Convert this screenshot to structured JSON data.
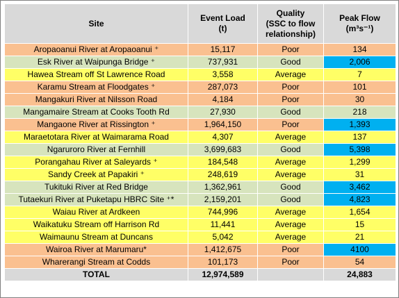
{
  "headers": {
    "site": "Site",
    "event_load": "Event Load",
    "event_load_unit": "(t)",
    "quality_line1": "Quality",
    "quality_line2": "(SSC to flow",
    "quality_line3": "relationship)",
    "peak_flow": "Peak Flow",
    "peak_flow_unit": "(m³s⁻¹)"
  },
  "rows": [
    {
      "site": "Aropaoanui River at Aropaoanui ⁺",
      "load": "15,117",
      "quality": "Poor",
      "peak": "134",
      "color": "orange",
      "peak_highlight": false
    },
    {
      "site": "Esk River at Waipunga Bridge ⁺",
      "load": "737,931",
      "quality": "Good",
      "peak": "2,006",
      "color": "green",
      "peak_highlight": true
    },
    {
      "site": "Hawea Stream off St Lawrence Road",
      "load": "3,558",
      "quality": "Average",
      "peak": "7",
      "color": "yellow",
      "peak_highlight": false
    },
    {
      "site": "Karamu Stream at Floodgates ⁺",
      "load": "287,073",
      "quality": "Poor",
      "peak": "101",
      "color": "orange",
      "peak_highlight": false
    },
    {
      "site": "Mangakuri River at Nilsson Road",
      "load": "4,184",
      "quality": "Poor",
      "peak": "30",
      "color": "orange",
      "peak_highlight": false
    },
    {
      "site": "Mangamaire Stream at Cooks Tooth Rd",
      "load": "27,930",
      "quality": "Good",
      "peak": "218",
      "color": "green",
      "peak_highlight": false
    },
    {
      "site": "Mangaone River at Rissington ⁺",
      "load": "1,964,150",
      "quality": "Poor",
      "peak": "1,393",
      "color": "orange",
      "peak_highlight": true
    },
    {
      "site": "Maraetotara River at Waimarama Road",
      "load": "4,307",
      "quality": "Average",
      "peak": "137",
      "color": "yellow",
      "peak_highlight": false
    },
    {
      "site": "Ngaruroro River at Fernhill",
      "load": "3,699,683",
      "quality": "Good",
      "peak": "5,398",
      "color": "green",
      "peak_highlight": true
    },
    {
      "site": "Porangahau River at Saleyards ⁺",
      "load": "184,548",
      "quality": "Average",
      "peak": "1,299",
      "color": "yellow",
      "peak_highlight": false
    },
    {
      "site": "Sandy Creek at Papakiri ⁺",
      "load": "248,619",
      "quality": "Average",
      "peak": "31",
      "color": "yellow",
      "peak_highlight": false
    },
    {
      "site": "Tukituki River at Red Bridge",
      "load": "1,362,961",
      "quality": "Good",
      "peak": "3,462",
      "color": "green",
      "peak_highlight": true
    },
    {
      "site": "Tutaekuri River at Puketapu HBRC Site ⁺*",
      "load": "2,159,201",
      "quality": "Good",
      "peak": "4,823",
      "color": "green",
      "peak_highlight": true
    },
    {
      "site": "Waiau River at Ardkeen",
      "load": "744,996",
      "quality": "Average",
      "peak": "1,654",
      "color": "yellow",
      "peak_highlight": false
    },
    {
      "site": "Waikatuku Stream off Harrison Rd",
      "load": "11,441",
      "quality": "Average",
      "peak": "15",
      "color": "yellow",
      "peak_highlight": false
    },
    {
      "site": "Waimaunu Stream at Duncans",
      "load": "5,042",
      "quality": "Average",
      "peak": "21",
      "color": "yellow",
      "peak_highlight": false
    },
    {
      "site": "Wairoa River at Marumaru*",
      "load": "1,412,675",
      "quality": "Poor",
      "peak": "4100",
      "color": "orange",
      "peak_highlight": true
    },
    {
      "site": "Wharerangi Stream at Codds",
      "load": "101,173",
      "quality": "Poor",
      "peak": "54",
      "color": "orange",
      "peak_highlight": false
    }
  ],
  "total": {
    "label": "TOTAL",
    "load": "12,974,589",
    "quality": "",
    "peak": "24,883"
  },
  "colors": {
    "orange": "#fac090",
    "green": "#d7e4bd",
    "yellow": "#ffff66",
    "highlight": "#00b0f0",
    "header": "#d9d9d9"
  }
}
